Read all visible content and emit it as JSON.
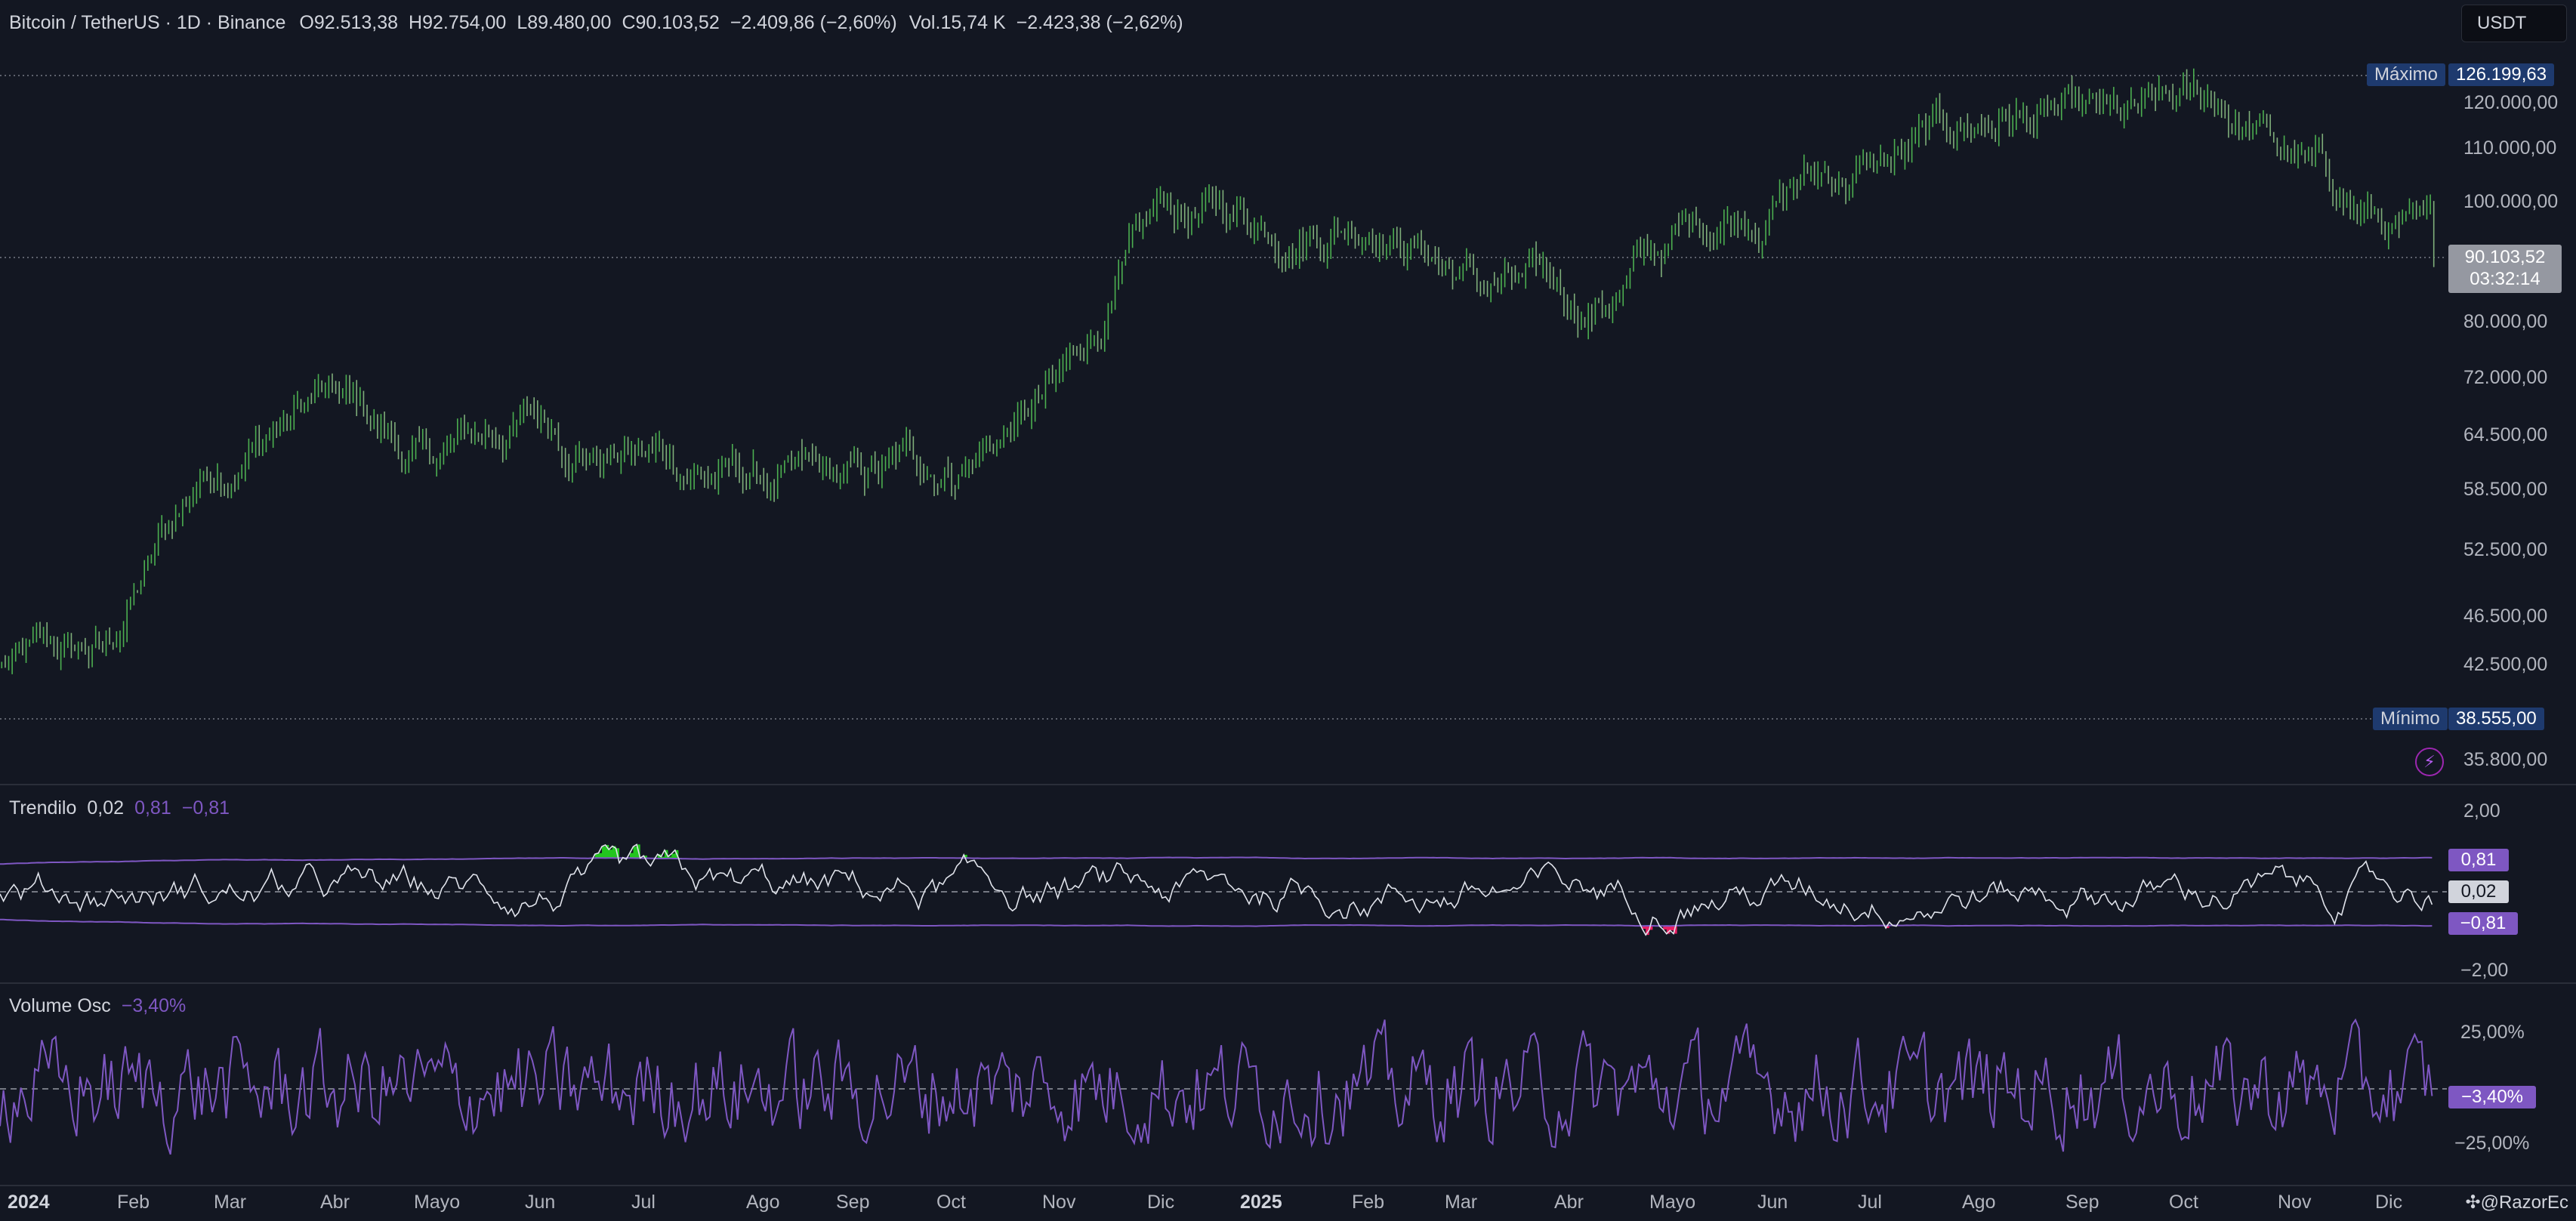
{
  "header": {
    "symbol": "Bitcoin / TetherUS · 1D · Binance",
    "open_label": "O",
    "open": "92.513,38",
    "high_label": "H",
    "high": "92.754,00",
    "low_label": "L",
    "low": "89.480,00",
    "close_label": "C",
    "close": "90.103,52",
    "change": "−2.409,86 (−2,60%)",
    "vol_label": "Vol.",
    "volume": "15,74 K",
    "vol_change": "−2.423,38 (−2,62%)"
  },
  "currency_button": "USDT",
  "price_axis": {
    "ticks": [
      "120.000,00",
      "110.000,00",
      "100.000,00",
      "80.000,00",
      "72.000,00",
      "64.500,00",
      "58.500,00",
      "52.500,00",
      "46.500,00",
      "42.500,00",
      "35.800,00"
    ],
    "max_label": "Máximo",
    "max_value": "126.199,63",
    "min_label": "Mínimo",
    "min_value": "38.555,00",
    "last_price": "90.103,52",
    "countdown": "03:32:14"
  },
  "trendilo": {
    "name": "Trendilo",
    "value": "0,02",
    "upper": "0,81",
    "lower": "−0,81",
    "axis_top": "2,00",
    "axis_bottom": "−2,00",
    "tag_upper": "0,81",
    "tag_value": "0,02",
    "tag_lower": "−0,81"
  },
  "volume_osc": {
    "name": "Volume Osc",
    "value": "−3,40%",
    "axis_top": "25,00%",
    "axis_bottom": "−25,00%",
    "tag_value": "−3,40%"
  },
  "time_axis": [
    "2024",
    "Feb",
    "Mar",
    "Abr",
    "Mayo",
    "Jun",
    "Jul",
    "Ago",
    "Sep",
    "Oct",
    "Nov",
    "Dic",
    "2025",
    "Feb",
    "Mar",
    "Abr",
    "Mayo",
    "Jun",
    "Jul",
    "Ago",
    "Sep",
    "Oct",
    "Nov",
    "Dic"
  ],
  "watermark": "@RazorEc",
  "colors": {
    "background": "#131722",
    "up": "#26a641",
    "down": "#8fbf8a",
    "trendilo_line": "#ffffff",
    "band": "#7e57c2",
    "fill_up": "#22c51e",
    "fill_down": "#e91e63",
    "osc_line": "#7e57c2",
    "max_min_tag": "#1e3a6e"
  },
  "chart_data": {
    "type": "line",
    "title": "Bitcoin / TetherUS",
    "x": [
      "2024-01",
      "2024-02",
      "2024-03",
      "2024-04",
      "2024-05",
      "2024-06",
      "2024-07",
      "2024-08",
      "2024-09",
      "2024-10",
      "2024-11",
      "2024-12",
      "2025-01",
      "2025-02",
      "2025-03",
      "2025-04",
      "2025-05",
      "2025-06",
      "2025-07",
      "2025-08",
      "2025-09",
      "2025-10",
      "2025-11",
      "2025-12"
    ],
    "series": [
      {
        "values": [
          42500,
          43000,
          62000,
          70000,
          61000,
          67000,
          63000,
          60000,
          58000,
          62000,
          70000,
          96000,
          97000,
          100000,
          86000,
          82000,
          95000,
          105000,
          108000,
          118000,
          112000,
          118000,
          102000,
          90103
        ]
      }
    ],
    "ylim": [
      35800,
      126199.63
    ],
    "log_scale": true
  }
}
